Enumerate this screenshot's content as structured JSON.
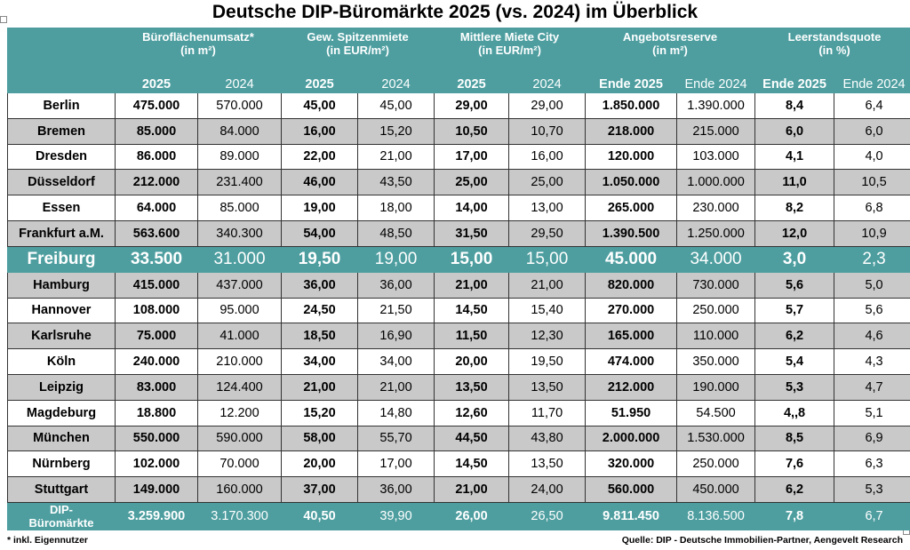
{
  "title": "Deutsche DIP-Büromärkte 2025 (vs. 2024) im Überblick",
  "groups": [
    {
      "l1": "Büroflächenumsatz*",
      "l2": "(in m²)",
      "cur": "2025",
      "prev": "2024"
    },
    {
      "l1": "Gew. Spitzenmiete",
      "l2": "(in EUR/m²)",
      "cur": "2025",
      "prev": "2024"
    },
    {
      "l1": "Mittlere Miete City",
      "l2": "(in EUR/m²)",
      "cur": "2025",
      "prev": "2024"
    },
    {
      "l1": "Angebotsreserve",
      "l2": "(in m²)",
      "cur": "Ende 2025",
      "prev": "Ende 2024"
    },
    {
      "l1": "Leerstandsquote",
      "l2": "(in %)",
      "cur": "Ende 2025",
      "prev": "Ende 2024"
    }
  ],
  "rows": [
    {
      "city": "Berlin",
      "v": [
        "475.000",
        "570.000",
        "45,00",
        "45,00",
        "29,00",
        "29,00",
        "1.850.000",
        "1.390.000",
        "8,4",
        "6,4"
      ]
    },
    {
      "city": "Bremen",
      "v": [
        "85.000",
        "84.000",
        "16,00",
        "15,20",
        "10,50",
        "10,70",
        "218.000",
        "215.000",
        "6,0",
        "6,0"
      ]
    },
    {
      "city": "Dresden",
      "v": [
        "86.000",
        "89.000",
        "22,00",
        "21,00",
        "17,00",
        "16,00",
        "120.000",
        "103.000",
        "4,1",
        "4,0"
      ]
    },
    {
      "city": "Düsseldorf",
      "v": [
        "212.000",
        "231.400",
        "46,00",
        "43,50",
        "25,00",
        "25,00",
        "1.050.000",
        "1.000.000",
        "11,0",
        "10,5"
      ]
    },
    {
      "city": "Essen",
      "v": [
        "64.000",
        "85.000",
        "19,00",
        "18,00",
        "14,00",
        "13,00",
        "265.000",
        "230.000",
        "8,2",
        "6,8"
      ]
    },
    {
      "city": "Frankfurt a.M.",
      "v": [
        "563.600",
        "340.300",
        "54,00",
        "48,50",
        "31,50",
        "29,50",
        "1.390.500",
        "1.250.000",
        "12,0",
        "10,9"
      ]
    },
    {
      "city": "Freiburg",
      "v": [
        "33.500",
        "31.000",
        "19,50",
        "19,00",
        "15,00",
        "15,00",
        "45.000",
        "34.000",
        "3,0",
        "2,3"
      ]
    },
    {
      "city": "Hamburg",
      "v": [
        "415.000",
        "437.000",
        "36,00",
        "36,00",
        "21,00",
        "21,00",
        "820.000",
        "730.000",
        "5,6",
        "5,0"
      ]
    },
    {
      "city": "Hannover",
      "v": [
        "108.000",
        "95.000",
        "24,50",
        "21,50",
        "14,50",
        "15,40",
        "270.000",
        "250.000",
        "5,7",
        "5,6"
      ]
    },
    {
      "city": "Karlsruhe",
      "v": [
        "75.000",
        "41.000",
        "18,50",
        "16,90",
        "11,50",
        "12,30",
        "165.000",
        "110.000",
        "6,2",
        "4,6"
      ]
    },
    {
      "city": "Köln",
      "v": [
        "240.000",
        "210.000",
        "34,00",
        "34,00",
        "20,00",
        "19,50",
        "474.000",
        "350.000",
        "5,4",
        "4,3"
      ]
    },
    {
      "city": "Leipzig",
      "v": [
        "83.000",
        "124.400",
        "21,00",
        "21,00",
        "13,50",
        "13,50",
        "212.000",
        "190.000",
        "5,3",
        "4,7"
      ]
    },
    {
      "city": "Magdeburg",
      "v": [
        "18.800",
        "12.200",
        "15,20",
        "14,80",
        "12,60",
        "11,70",
        "51.950",
        "54.500",
        "4,,8",
        "5,1"
      ]
    },
    {
      "city": "München",
      "v": [
        "550.000",
        "590.000",
        "58,00",
        "55,70",
        "44,50",
        "43,80",
        "2.000.000",
        "1.530.000",
        "8,5",
        "6,9"
      ]
    },
    {
      "city": "Nürnberg",
      "v": [
        "102.000",
        "70.000",
        "20,00",
        "17,00",
        "14,50",
        "13,50",
        "320.000",
        "250.000",
        "7,6",
        "6,3"
      ]
    },
    {
      "city": "Stuttgart",
      "v": [
        "149.000",
        "160.000",
        "37,00",
        "36,00",
        "21,00",
        "24,00",
        "560.000",
        "450.000",
        "6,2",
        "5,3"
      ]
    }
  ],
  "total": {
    "city_l1": "DIP-",
    "city_l2": "Büromärkte",
    "v": [
      "3.259.900",
      "3.170.300",
      "40,50",
      "39,90",
      "26,00",
      "26,50",
      "9.811.450",
      "8.136.500",
      "7,8",
      "6,7"
    ]
  },
  "footnote": "* inkl. Eigennutzer",
  "source": "Quelle: DIP - Deutsche Immobilien-Partner, Aengevelt Research",
  "colors": {
    "header_teal": "#4e9ea0",
    "row_gray": "#c9c9c9"
  }
}
